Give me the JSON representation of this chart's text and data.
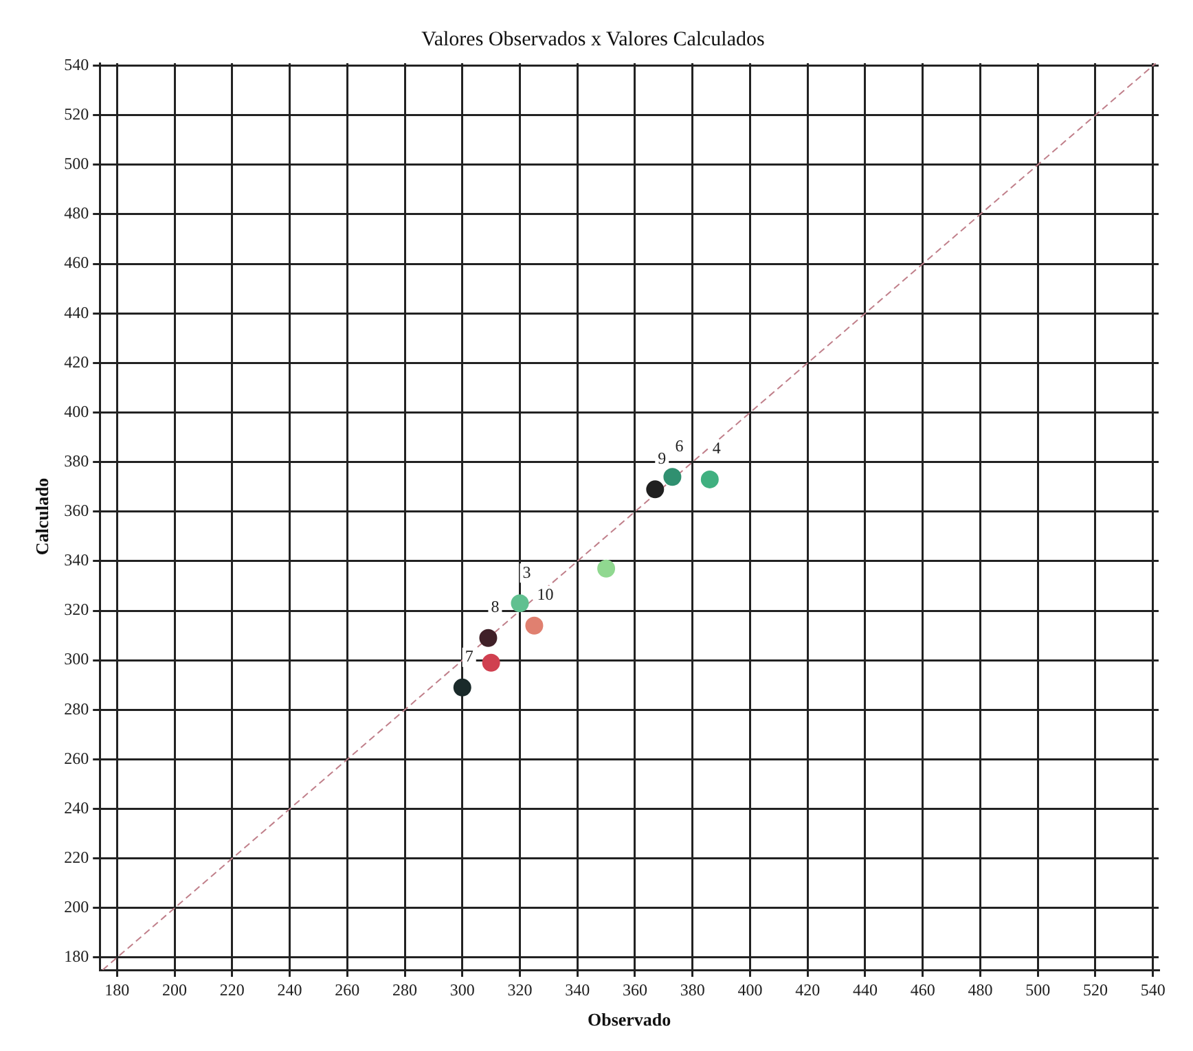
{
  "chart_data": {
    "type": "scatter",
    "title": "Valores Observados x Valores Calculados",
    "xlabel": "Observado",
    "ylabel": "Calculado",
    "xlim": [
      174,
      542
    ],
    "ylim": [
      175,
      541
    ],
    "xticks": [
      180,
      200,
      220,
      240,
      260,
      280,
      300,
      320,
      340,
      360,
      380,
      400,
      420,
      440,
      460,
      480,
      500,
      520,
      540
    ],
    "yticks": [
      180,
      200,
      220,
      240,
      260,
      280,
      300,
      320,
      340,
      360,
      380,
      400,
      420,
      440,
      460,
      480,
      500,
      520,
      540
    ],
    "grid": true,
    "legend": false,
    "marker": "circle",
    "series": [
      {
        "type": "line",
        "x": [
          175,
          541
        ],
        "values": [
          175,
          541
        ],
        "color": "#c07f8a",
        "line_style": "dashed",
        "marker": "none"
      },
      {
        "type": "scatter",
        "x": [
          300,
          310,
          309,
          325,
          320,
          350,
          367,
          373,
          386
        ],
        "values": [
          289,
          299,
          309,
          314,
          323,
          337,
          369,
          374,
          373
        ],
        "colors": [
          "#1a2a2a",
          "#d04050",
          "#402028",
          "#e08070",
          "#60c090",
          "#90d890",
          "#202020",
          "#309070",
          "#40b080"
        ]
      }
    ],
    "annotations": [
      {
        "text": "7",
        "x": 300,
        "y": 289
      },
      {
        "text": "8",
        "x": 309,
        "y": 309
      },
      {
        "text": "10",
        "x": 325,
        "y": 314
      },
      {
        "text": "3",
        "x": 320,
        "y": 323
      },
      {
        "text": "9",
        "x": 367,
        "y": 369
      },
      {
        "text": "6",
        "x": 373,
        "y": 374
      },
      {
        "text": "4",
        "x": 386,
        "y": 373
      }
    ]
  }
}
